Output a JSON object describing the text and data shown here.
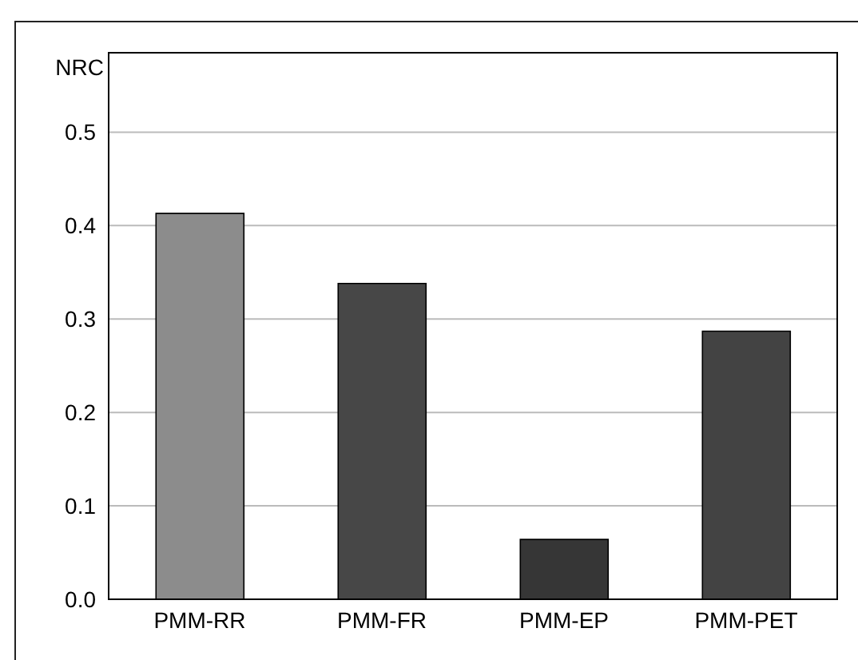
{
  "chart_data": {
    "type": "bar",
    "ylabel": "NRC",
    "categories": [
      "PMM-RR",
      "PMM-FR",
      "PMM-EP",
      "PMM-PET"
    ],
    "values": [
      0.413,
      0.338,
      0.064,
      0.287
    ],
    "colors": [
      "#8c8c8c",
      "#474747",
      "#363636",
      "#434343"
    ],
    "ylim": [
      0,
      0.585
    ],
    "yticks": [
      {
        "value": 0,
        "label": "0.0"
      },
      0.1,
      0.2,
      0.3,
      0.4,
      0.5
    ],
    "grid": "y"
  }
}
